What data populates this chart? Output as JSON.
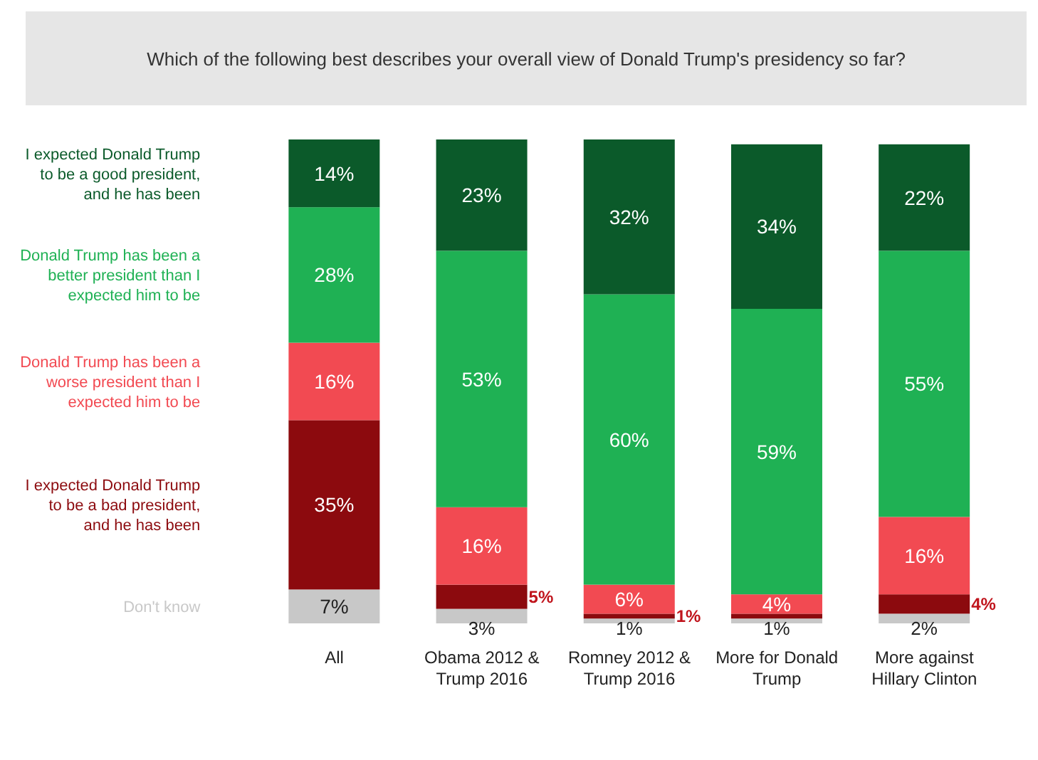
{
  "chart_data": {
    "type": "bar",
    "stacked": true,
    "title": "Which of the following best describes your overall view of Donald Trump's presidency so far?",
    "categories": [
      "All",
      "Obama 2012 & Trump 2016",
      "Romney 2012 & Trump 2016",
      "More for Donald Trump",
      "More against Hillary Clinton"
    ],
    "series": [
      {
        "name": "Don't know",
        "color": "#c8c8c8",
        "values": [
          7,
          3,
          1,
          1,
          2
        ],
        "value_labels": [
          "7%",
          "3%",
          "1%",
          "1%",
          "2%"
        ]
      },
      {
        "name": "I expected Donald Trump to be a bad president, and he has been",
        "color": "#8c0a0e",
        "values": [
          35,
          5,
          1,
          1,
          4
        ],
        "value_labels": [
          "35%",
          "5%",
          "1%",
          null,
          "4%"
        ]
      },
      {
        "name": "Donald Trump has been a worse president than I expected him to be",
        "color": "#f24a52",
        "values": [
          16,
          16,
          6,
          4,
          16
        ],
        "value_labels": [
          "16%",
          "16%",
          "6%",
          "4%",
          "16%"
        ]
      },
      {
        "name": "Donald Trump has been a better president than I expected him to be",
        "color": "#1fb154",
        "values": [
          28,
          53,
          60,
          59,
          55
        ],
        "value_labels": [
          "28%",
          "53%",
          "60%",
          "59%",
          "55%"
        ]
      },
      {
        "name": "I expected Donald Trump to be a good president, and he has been",
        "color": "#0b5a2a",
        "values": [
          14,
          23,
          32,
          34,
          22
        ],
        "value_labels": [
          "14%",
          "23%",
          "32%",
          "34%",
          "22%"
        ]
      }
    ],
    "legend": "left"
  }
}
